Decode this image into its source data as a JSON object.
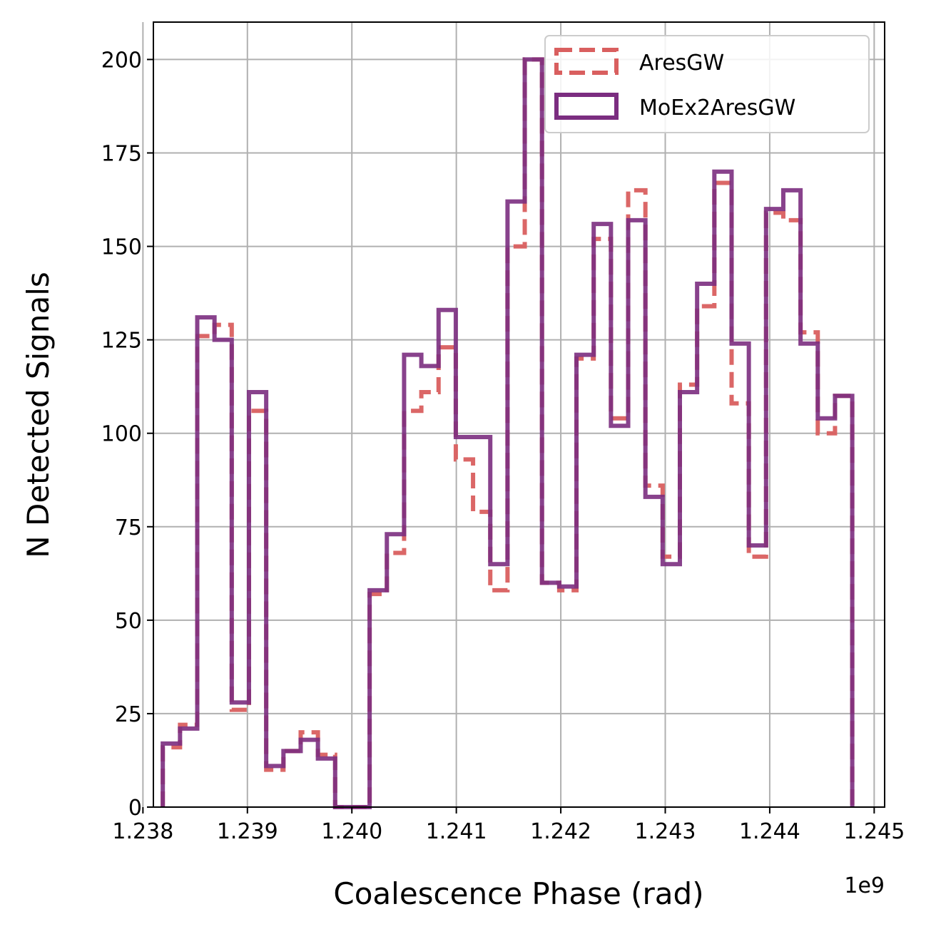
{
  "chart_data": {
    "type": "histogram-step",
    "xlabel": "Coalescence Phase (rad)",
    "ylabel": "N Detected Signals",
    "x_offset_label": "1e9",
    "xlim": [
      1.2381,
      1.2451
    ],
    "ylim": [
      0,
      210
    ],
    "x_ticks": [
      1.238,
      1.239,
      1.24,
      1.241,
      1.242,
      1.243,
      1.244,
      1.245
    ],
    "x_tick_labels": [
      "1.238",
      "1.239",
      "1.240",
      "1.241",
      "1.242",
      "1.243",
      "1.244",
      "1.245"
    ],
    "y_ticks": [
      0,
      25,
      50,
      75,
      100,
      125,
      150,
      175,
      200
    ],
    "y_tick_labels": [
      "0",
      "25",
      "50",
      "75",
      "100",
      "125",
      "150",
      "175",
      "200"
    ],
    "grid": true,
    "legend_position": "upper right",
    "bin_start": 1.23819,
    "bin_end": 1.24479,
    "series": [
      {
        "name": "AresGW",
        "color": "#d95f5f",
        "style": "dashed",
        "values": [
          16,
          22,
          126,
          129,
          26,
          106,
          10,
          15,
          20,
          14,
          0,
          0,
          57,
          68,
          106,
          111,
          123,
          93,
          79,
          58,
          150,
          200,
          60,
          58,
          120,
          152,
          104,
          165,
          86,
          67,
          113,
          134,
          167,
          108,
          67,
          159,
          157,
          127,
          100,
          110
        ]
      },
      {
        "name": "MoEx2AresGW",
        "color": "#7b2d80",
        "style": "solid",
        "values": [
          17,
          21,
          131,
          125,
          28,
          111,
          11,
          15,
          18,
          13,
          0,
          0,
          58,
          73,
          121,
          118,
          133,
          99,
          99,
          65,
          162,
          200,
          60,
          59,
          121,
          156,
          102,
          157,
          83,
          65,
          111,
          140,
          170,
          124,
          70,
          160,
          165,
          124,
          104,
          110
        ]
      }
    ]
  }
}
